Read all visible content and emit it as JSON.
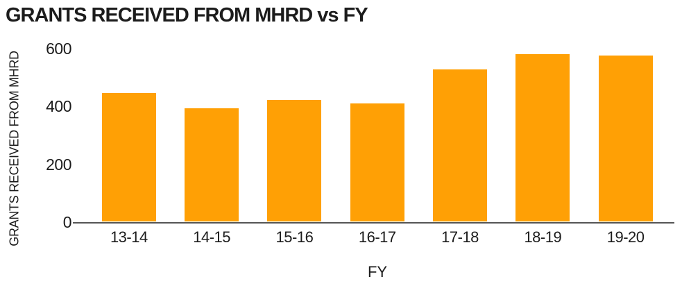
{
  "chart_data": {
    "type": "bar",
    "title": "GRANTS RECEIVED FROM MHRD vs FY",
    "xlabel": "FY",
    "ylabel": "GRANTS RECEIVED FROM MHRD",
    "categories": [
      "13-14",
      "14-15",
      "15-16",
      "16-17",
      "17-18",
      "18-19",
      "19-20"
    ],
    "values": [
      447,
      394,
      423,
      410,
      528,
      582,
      576
    ],
    "ylim": [
      0,
      600
    ],
    "yticks": [
      0,
      200,
      400,
      600
    ],
    "grid": false,
    "legend": false,
    "colors": {
      "bar": "#FFA005",
      "axis_line": "#555555",
      "text": "#1C1C1C",
      "background": "#FFFFFF"
    }
  }
}
